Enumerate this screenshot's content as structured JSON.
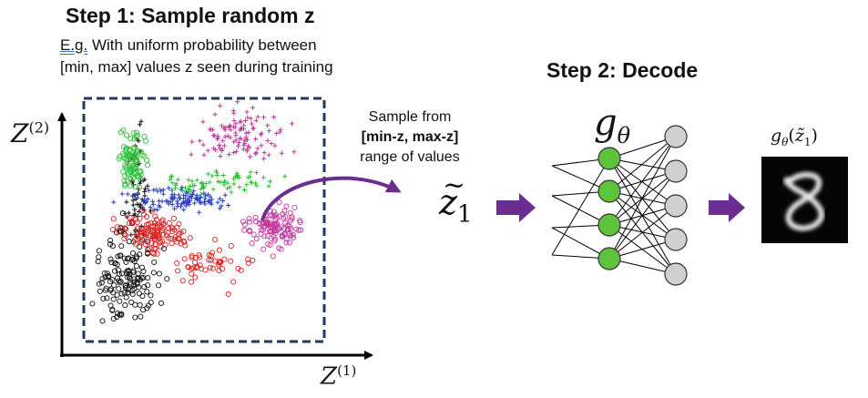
{
  "step1": {
    "title": "Step 1: Sample random z",
    "desc_eg": "E.g.",
    "desc_line1_rest": " With uniform probability between",
    "desc_line2": "[min, max] values z seen during training"
  },
  "plot": {
    "y_axis_label": "Z",
    "y_axis_sup": "(2)",
    "x_axis_label": "Z",
    "x_axis_sup": "(1)",
    "cluster_colors": [
      "#111111",
      "#e02020",
      "#2a3fbf",
      "#2fbf3a",
      "#c03aa0"
    ],
    "box_color": "#1f3a66"
  },
  "sample_note": {
    "line1": "Sample from",
    "line2": "[min-z, max-z]",
    "line3": "range of values"
  },
  "latent": {
    "symbol": "z",
    "subscript": "1"
  },
  "step2": {
    "title": "Step 2: Decode"
  },
  "decoder": {
    "label": "g",
    "label_sub": "θ",
    "hidden_color": "#5cc43a",
    "output_color": "#d0d0d0"
  },
  "output": {
    "label": "gθ(z̃1)",
    "label_fn": "g",
    "label_sub": "θ",
    "label_arg": "(z̃",
    "label_arg_sub": "1",
    "label_close": ")"
  },
  "colors": {
    "arrow": "#6b2d8f"
  }
}
